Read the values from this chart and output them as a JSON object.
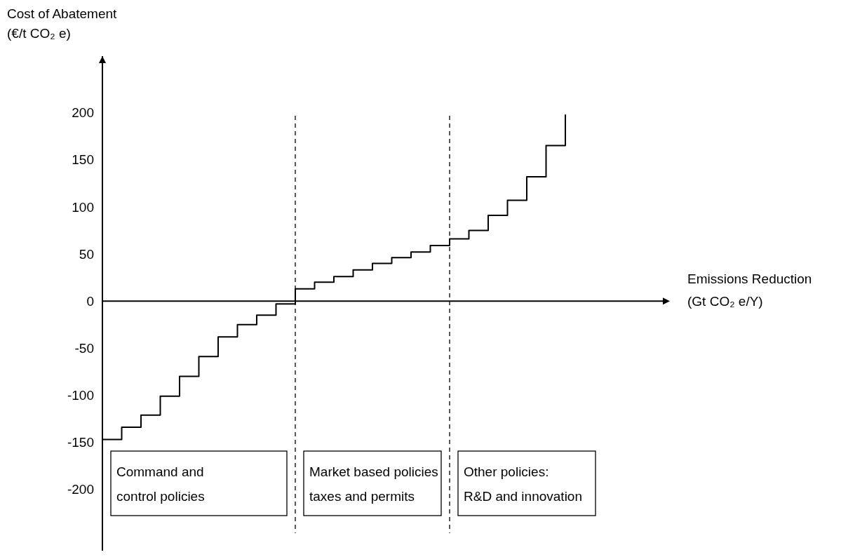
{
  "chart_data": {
    "type": "step",
    "ylabel": "Cost of Abatement\n(€/t CO₂ e)",
    "categories": [
      null,
      null,
      null,
      null,
      null,
      null,
      null,
      null,
      null,
      null,
      null,
      null,
      null,
      null,
      null,
      null,
      null,
      null,
      null,
      null,
      null,
      null,
      null,
      null,
      null
    ],
    "values": [
      -147,
      -134,
      -121,
      -101,
      -80,
      -59,
      -38,
      -25,
      -15,
      -3,
      13,
      20,
      26,
      33,
      40,
      46,
      52,
      59,
      66,
      75,
      91,
      107,
      132,
      165,
      198
    ],
    "color": "#000000",
    "ylim": [
      -265,
      260
    ],
    "yticks": [
      -200,
      -150,
      -100,
      -50,
      0,
      50,
      100,
      150,
      200
    ],
    "annotations": [
      "Emissions Reduction\n(Gt CO₂ e/Y)",
      "Command and\ncontrol policies",
      "Market based policies\ntaxes and permits",
      "Other policies:\nR&D and innovation"
    ],
    "grid": false
  }
}
